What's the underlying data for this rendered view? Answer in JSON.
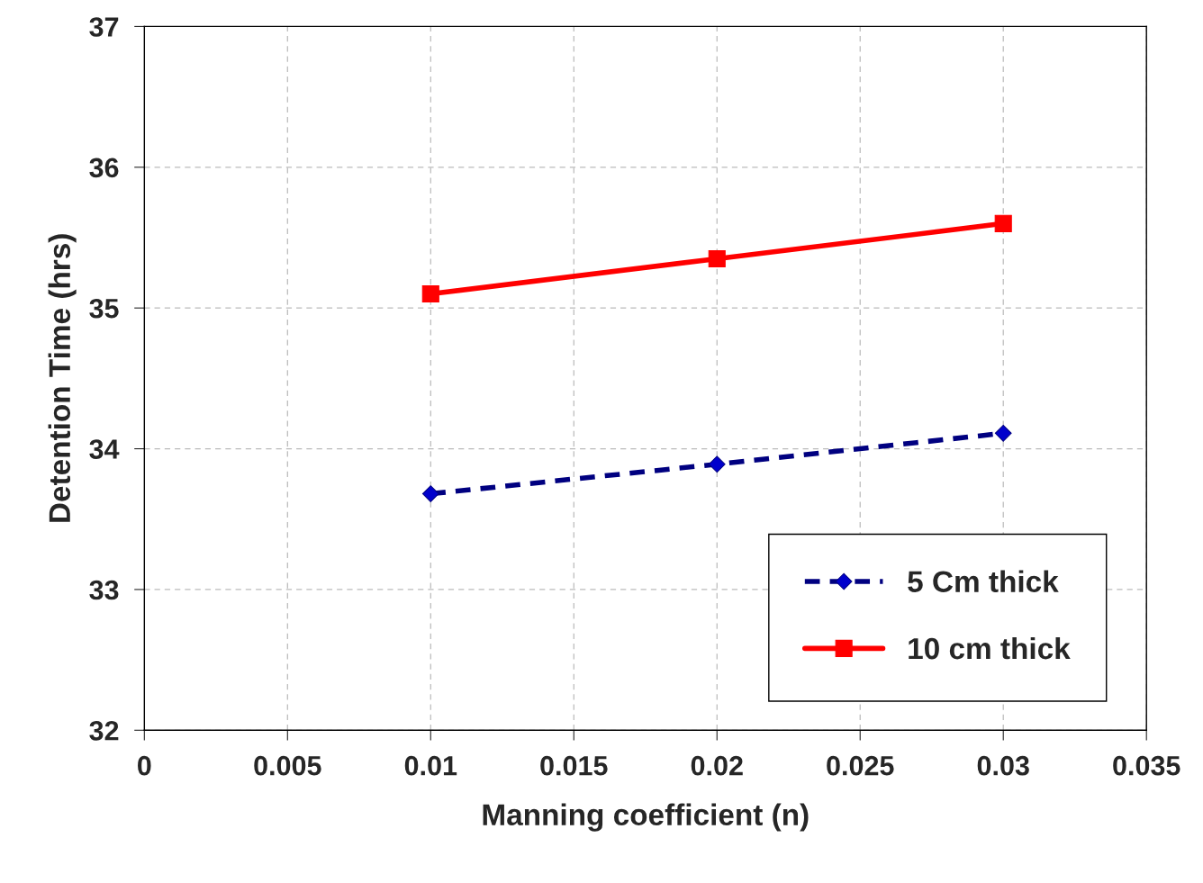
{
  "chart_data": {
    "type": "line",
    "xlabel": "Manning coefficient (n)",
    "ylabel": "Detention Time (hrs)",
    "x": [
      0.01,
      0.02,
      0.03
    ],
    "series": [
      {
        "name": "5 Cm thick",
        "color": "#000080",
        "values": [
          33.68,
          33.89,
          34.11
        ],
        "marker": "diamond",
        "line_style": "dashed"
      },
      {
        "name": "10 cm thick",
        "color": "#ff0000",
        "values": [
          35.1,
          35.35,
          35.6
        ],
        "marker": "square",
        "line_style": "solid"
      }
    ],
    "xlim": [
      0,
      0.035
    ],
    "xticks": [
      0,
      0.005,
      0.01,
      0.015,
      0.02,
      0.025,
      0.03,
      0.035
    ],
    "ylim": [
      32,
      37
    ],
    "yticks": [
      32,
      33,
      34,
      35,
      36,
      37
    ],
    "grid": true,
    "legend": "bottom right"
  }
}
